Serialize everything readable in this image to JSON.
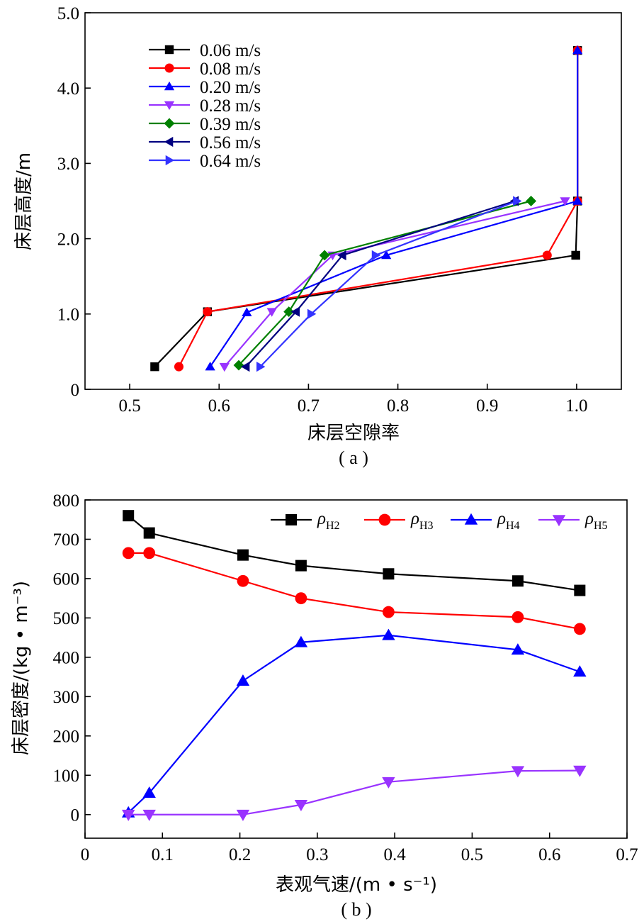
{
  "chart_data": [
    {
      "type": "line",
      "caption": "( a )",
      "xlabel": "床层空隙率",
      "ylabel": "床层高度/m",
      "xlim": [
        0.45,
        1.05
      ],
      "ylim": [
        0,
        5.0
      ],
      "x_ticks": [
        0.5,
        0.6,
        0.7,
        0.8,
        0.9,
        1.0
      ],
      "x_tick_labels": [
        "0.5",
        "0.6",
        "0.7",
        "0.8",
        "0.9",
        "1.0"
      ],
      "y_ticks": [
        0,
        1.0,
        2.0,
        3.0,
        4.0,
        5.0
      ],
      "y_tick_labels": [
        "0",
        "1.0",
        "2.0",
        "3.0",
        "4.0",
        "5.0"
      ],
      "legend_position": "top-left",
      "series": [
        {
          "name": "0.06 m/s",
          "color": "#000000",
          "marker": "square",
          "points": [
            [
              0.528,
              0.3
            ],
            [
              0.587,
              1.03
            ],
            [
              0.999,
              1.78
            ],
            [
              1.001,
              2.5
            ],
            [
              1.001,
              4.5
            ]
          ]
        },
        {
          "name": "0.08 m/s",
          "color": "#ff0000",
          "marker": "circle",
          "points": [
            [
              0.555,
              0.3
            ],
            [
              0.587,
              1.03
            ],
            [
              0.967,
              1.78
            ],
            [
              1.001,
              2.5
            ],
            [
              1.001,
              4.5
            ]
          ]
        },
        {
          "name": "0.20 m/s",
          "color": "#0000ff",
          "marker": "triangle-up",
          "points": [
            [
              0.59,
              0.3
            ],
            [
              0.631,
              1.02
            ],
            [
              0.787,
              1.78
            ],
            [
              1.001,
              2.5
            ],
            [
              1.001,
              4.5
            ]
          ]
        },
        {
          "name": "0.28 m/s",
          "color": "#9933ff",
          "marker": "triangle-down",
          "points": [
            [
              0.606,
              0.3
            ],
            [
              0.659,
              1.03
            ],
            [
              0.727,
              1.78
            ],
            [
              0.987,
              2.5
            ]
          ]
        },
        {
          "name": "0.39 m/s",
          "color": "#008000",
          "marker": "diamond",
          "points": [
            [
              0.622,
              0.32
            ],
            [
              0.678,
              1.03
            ],
            [
              0.718,
              1.78
            ],
            [
              0.949,
              2.5
            ]
          ]
        },
        {
          "name": "0.56 m/s",
          "color": "#000080",
          "marker": "triangle-left",
          "points": [
            [
              0.63,
              0.3
            ],
            [
              0.686,
              1.03
            ],
            [
              0.738,
              1.78
            ],
            [
              0.931,
              2.5
            ]
          ]
        },
        {
          "name": "0.64 m/s",
          "color": "#3333ff",
          "marker": "triangle-right",
          "points": [
            [
              0.646,
              0.3
            ],
            [
              0.703,
              1.0
            ],
            [
              0.775,
              1.78
            ],
            [
              0.933,
              2.5
            ]
          ]
        }
      ]
    },
    {
      "type": "line",
      "caption": "( b )",
      "xlabel": "表观气速/(m • s⁻¹)",
      "ylabel": "床层密度/(kg • m⁻³)",
      "xlim": [
        0,
        0.7
      ],
      "ylim": [
        -60,
        800
      ],
      "x_ticks": [
        0,
        0.1,
        0.2,
        0.3,
        0.4,
        0.5,
        0.6,
        0.7
      ],
      "x_tick_labels": [
        "0",
        "0.1",
        "0.2",
        "0.3",
        "0.4",
        "0.5",
        "0.6",
        "0.7"
      ],
      "y_ticks": [
        0,
        100,
        200,
        300,
        400,
        500,
        600,
        700,
        800
      ],
      "y_tick_labels": [
        "0",
        "100",
        "200",
        "300",
        "400",
        "500",
        "600",
        "700",
        "800"
      ],
      "legend_position": "top-right",
      "x": [
        0.056,
        0.083,
        0.204,
        0.279,
        0.392,
        0.559,
        0.639
      ],
      "series": [
        {
          "name": "ρ",
          "sub": "H2",
          "color": "#000000",
          "marker": "square",
          "values": [
            760,
            716,
            660,
            633,
            612,
            594,
            570
          ]
        },
        {
          "name": "ρ",
          "sub": "H3",
          "color": "#ff0000",
          "marker": "circle",
          "values": [
            665,
            665,
            594,
            550,
            515,
            502,
            472
          ]
        },
        {
          "name": "ρ",
          "sub": "H4",
          "color": "#0000ff",
          "marker": "triangle-up",
          "values": [
            5,
            55,
            340,
            438,
            456,
            419,
            363
          ]
        },
        {
          "name": "ρ",
          "sub": "H5",
          "color": "#9933ff",
          "marker": "triangle-down",
          "values": [
            0,
            0,
            0,
            25,
            83,
            111,
            112
          ]
        }
      ]
    }
  ]
}
